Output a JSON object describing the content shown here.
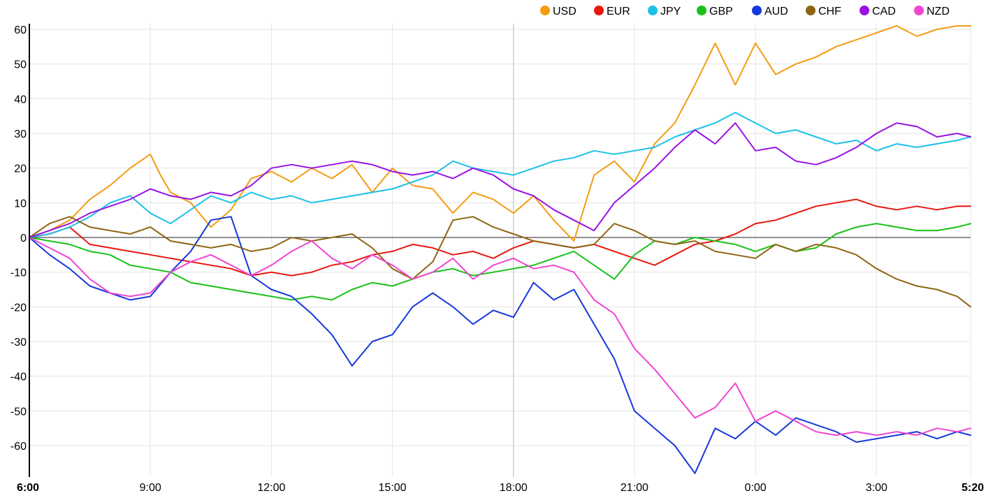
{
  "chart_data": {
    "type": "line",
    "title": "",
    "xlabel": "",
    "ylabel": "",
    "ylim": [
      -69,
      62
    ],
    "y_ticks": [
      60,
      50,
      40,
      30,
      20,
      10,
      0,
      -10,
      -20,
      -30,
      -40,
      -50,
      -60
    ],
    "x_tick_labels": [
      "6:00",
      "9:00",
      "12:00",
      "15:00",
      "18:00",
      "21:00",
      "0:00",
      "3:00",
      "5:20"
    ],
    "x_tick_hours": [
      0,
      3,
      6,
      9,
      12,
      15,
      18,
      21,
      23.333
    ],
    "x_range_hours": [
      0,
      23.333
    ],
    "grid": true,
    "legend_position": "top-right",
    "series": [
      {
        "name": "USD",
        "color": "#f39c12",
        "x": [
          0,
          0.5,
          1,
          1.5,
          2,
          2.5,
          3,
          3.25,
          3.5,
          4,
          4.5,
          5,
          5.5,
          6,
          6.5,
          7,
          7.5,
          8,
          8.5,
          9,
          9.5,
          10,
          10.5,
          11,
          11.5,
          12,
          12.5,
          13,
          13.5,
          14,
          14.5,
          15,
          15.5,
          16,
          16.5,
          17,
          17.5,
          18,
          18.5,
          19,
          19.5,
          20,
          20.5,
          21,
          21.5,
          22,
          22.5,
          23,
          23.333
        ],
        "values": [
          0,
          2,
          5,
          11,
          15,
          20,
          24,
          18,
          13,
          10,
          3,
          8,
          17,
          19,
          16,
          20,
          17,
          21,
          13,
          20,
          15,
          14,
          7,
          13,
          11,
          7,
          12,
          5,
          -1,
          18,
          22,
          16,
          27,
          33,
          44,
          56,
          44,
          56,
          47,
          50,
          52,
          55,
          57,
          59,
          61,
          58,
          60,
          61,
          61
        ]
      },
      {
        "name": "EUR",
        "color": "#e8170e",
        "x": [
          0,
          0.5,
          1,
          1.5,
          2,
          2.5,
          3,
          3.5,
          4,
          4.5,
          5,
          5.5,
          6,
          6.5,
          7,
          7.5,
          8,
          8.5,
          9,
          9.5,
          10,
          10.5,
          11,
          11.5,
          12,
          12.5,
          13,
          13.5,
          14,
          14.5,
          15,
          15.5,
          16,
          16.5,
          17,
          17.5,
          18,
          18.5,
          19,
          19.5,
          20,
          20.5,
          21,
          21.5,
          22,
          22.5,
          23,
          23.333
        ],
        "values": [
          0,
          1,
          3,
          -2,
          -3,
          -4,
          -5,
          -6,
          -7,
          -8,
          -9,
          -11,
          -10,
          -11,
          -10,
          -8,
          -7,
          -5,
          -4,
          -2,
          -3,
          -5,
          -4,
          -6,
          -3,
          -1,
          -2,
          -3,
          -2,
          -4,
          -6,
          -8,
          -5,
          -2,
          -1,
          1,
          4,
          5,
          7,
          9,
          10,
          11,
          9,
          8,
          9,
          8,
          9,
          9
        ]
      },
      {
        "name": "JPY",
        "color": "#1cc1e8",
        "x": [
          0,
          0.5,
          1,
          1.5,
          2,
          2.5,
          3,
          3.5,
          4,
          4.5,
          5,
          5.5,
          6,
          6.5,
          7,
          7.5,
          8,
          8.5,
          9,
          9.5,
          10,
          10.5,
          11,
          11.5,
          12,
          12.5,
          13,
          13.5,
          14,
          14.5,
          15,
          15.5,
          16,
          16.5,
          17,
          17.5,
          18,
          18.5,
          19,
          19.5,
          20,
          20.5,
          21,
          21.5,
          22,
          22.5,
          23,
          23.333
        ],
        "values": [
          0,
          1,
          3,
          6,
          10,
          12,
          7,
          4,
          8,
          12,
          10,
          13,
          11,
          12,
          10,
          11,
          12,
          13,
          14,
          16,
          18,
          22,
          20,
          19,
          18,
          20,
          22,
          23,
          25,
          24,
          25,
          26,
          29,
          31,
          33,
          36,
          33,
          30,
          31,
          29,
          27,
          28,
          25,
          27,
          26,
          27,
          28,
          29
        ]
      },
      {
        "name": "GBP",
        "color": "#19c21a",
        "x": [
          0,
          0.5,
          1,
          1.5,
          2,
          2.5,
          3,
          3.5,
          4,
          4.5,
          5,
          5.5,
          6,
          6.5,
          7,
          7.5,
          8,
          8.5,
          9,
          9.5,
          10,
          10.5,
          11,
          11.5,
          12,
          12.5,
          13,
          13.5,
          14,
          14.5,
          15,
          15.5,
          16,
          16.5,
          17,
          17.5,
          18,
          18.5,
          19,
          19.5,
          20,
          20.5,
          21,
          21.5,
          22,
          22.5,
          23,
          23.333
        ],
        "values": [
          0,
          -1,
          -2,
          -4,
          -5,
          -8,
          -9,
          -10,
          -13,
          -14,
          -15,
          -16,
          -17,
          -18,
          -17,
          -18,
          -15,
          -13,
          -14,
          -12,
          -10,
          -9,
          -11,
          -10,
          -9,
          -8,
          -6,
          -4,
          -8,
          -12,
          -5,
          -1,
          -2,
          0,
          -1,
          -2,
          -4,
          -2,
          -4,
          -3,
          1,
          3,
          4,
          3,
          2,
          2,
          3,
          4
        ]
      },
      {
        "name": "AUD",
        "color": "#1538d9",
        "x": [
          0,
          0.5,
          1,
          1.5,
          2,
          2.5,
          3,
          3.5,
          4,
          4.5,
          5,
          5.5,
          6,
          6.5,
          7,
          7.5,
          8,
          8.5,
          9,
          9.5,
          10,
          10.5,
          11,
          11.5,
          12,
          12.5,
          13,
          13.5,
          14,
          14.5,
          15,
          15.5,
          16,
          16.5,
          17,
          17.5,
          18,
          18.5,
          19,
          19.5,
          20,
          20.5,
          21,
          21.5,
          22,
          22.5,
          23,
          23.333
        ],
        "values": [
          0,
          -5,
          -9,
          -14,
          -16,
          -18,
          -17,
          -10,
          -4,
          5,
          6,
          -11,
          -15,
          -17,
          -22,
          -28,
          -37,
          -30,
          -28,
          -20,
          -16,
          -20,
          -25,
          -21,
          -23,
          -13,
          -18,
          -15,
          -25,
          -35,
          -50,
          -55,
          -60,
          -68,
          -55,
          -58,
          -53,
          -57,
          -52,
          -54,
          -56,
          -59,
          -58,
          -57,
          -56,
          -58,
          -56,
          -57
        ]
      },
      {
        "name": "CHF",
        "color": "#8f6514",
        "x": [
          0,
          0.5,
          1,
          1.5,
          2,
          2.5,
          3,
          3.5,
          4,
          4.5,
          5,
          5.5,
          6,
          6.5,
          7,
          7.5,
          8,
          8.5,
          9,
          9.5,
          10,
          10.5,
          11,
          11.5,
          12,
          12.5,
          13,
          13.5,
          14,
          14.5,
          15,
          15.5,
          16,
          16.5,
          17,
          17.5,
          18,
          18.5,
          19,
          19.5,
          20,
          20.5,
          21,
          21.5,
          22,
          22.5,
          23,
          23.333
        ],
        "values": [
          0,
          4,
          6,
          3,
          2,
          1,
          3,
          -1,
          -2,
          -3,
          -2,
          -4,
          -3,
          0,
          -1,
          0,
          1,
          -3,
          -9,
          -12,
          -7,
          5,
          6,
          3,
          1,
          -1,
          -2,
          -3,
          -2,
          4,
          2,
          -1,
          -2,
          -1,
          -4,
          -5,
          -6,
          -2,
          -4,
          -2,
          -3,
          -5,
          -9,
          -12,
          -14,
          -15,
          -17,
          -20
        ]
      },
      {
        "name": "CAD",
        "color": "#9a12e3",
        "x": [
          0,
          0.5,
          1,
          1.5,
          2,
          2.5,
          3,
          3.5,
          4,
          4.5,
          5,
          5.5,
          6,
          6.5,
          7,
          7.5,
          8,
          8.5,
          9,
          9.5,
          10,
          10.5,
          11,
          11.5,
          12,
          12.5,
          13,
          13.5,
          14,
          14.5,
          15,
          15.5,
          16,
          16.5,
          17,
          17.5,
          18,
          18.5,
          19,
          19.5,
          20,
          20.5,
          21,
          21.5,
          22,
          22.5,
          23,
          23.333
        ],
        "values": [
          0,
          2,
          4,
          7,
          9,
          11,
          14,
          12,
          11,
          13,
          12,
          15,
          20,
          21,
          20,
          21,
          22,
          21,
          19,
          18,
          19,
          17,
          20,
          18,
          14,
          12,
          8,
          5,
          2,
          10,
          15,
          20,
          26,
          31,
          27,
          33,
          25,
          26,
          22,
          21,
          23,
          26,
          30,
          33,
          32,
          29,
          30,
          29
        ]
      },
      {
        "name": "NZD",
        "color": "#f045d1",
        "x": [
          0,
          0.5,
          1,
          1.5,
          2,
          2.5,
          3,
          3.5,
          4,
          4.5,
          5,
          5.5,
          6,
          6.5,
          7,
          7.5,
          8,
          8.5,
          9,
          9.5,
          10,
          10.5,
          11,
          11.5,
          12,
          12.5,
          13,
          13.5,
          14,
          14.5,
          15,
          15.5,
          16,
          16.5,
          17,
          17.5,
          18,
          18.5,
          19,
          19.5,
          20,
          20.5,
          21,
          21.5,
          22,
          22.5,
          23,
          23.333
        ],
        "values": [
          0,
          -3,
          -6,
          -12,
          -16,
          -17,
          -16,
          -10,
          -7,
          -5,
          -8,
          -11,
          -8,
          -4,
          -1,
          -6,
          -9,
          -5,
          -8,
          -12,
          -10,
          -6,
          -12,
          -8,
          -6,
          -9,
          -8,
          -10,
          -18,
          -22,
          -32,
          -38,
          -45,
          -52,
          -49,
          -42,
          -53,
          -50,
          -53,
          -56,
          -57,
          -56,
          -57,
          -56,
          -57,
          -55,
          -56,
          -55
        ]
      }
    ]
  }
}
